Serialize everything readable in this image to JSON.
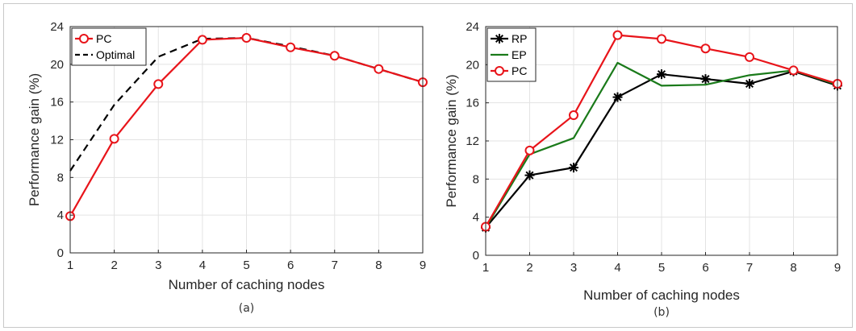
{
  "chart_data": [
    {
      "type": "line",
      "caption": "(a)",
      "xlabel": "Number of caching nodes",
      "ylabel": "Performance gain (%)",
      "xlim": [
        1,
        9
      ],
      "ylim": [
        0,
        24
      ],
      "xticks": [
        1,
        2,
        3,
        4,
        5,
        6,
        7,
        8,
        9
      ],
      "yticks": [
        0,
        4,
        8,
        12,
        16,
        20,
        24
      ],
      "grid": true,
      "legend_position": "top-left",
      "x": [
        1,
        2,
        3,
        4,
        5,
        6,
        7,
        8,
        9
      ],
      "series": [
        {
          "name": "PC",
          "values": [
            3.9,
            12.1,
            17.9,
            22.6,
            22.8,
            21.8,
            20.9,
            19.5,
            18.1
          ],
          "color": "#e8141a",
          "style": "solid",
          "marker": "circle"
        },
        {
          "name": "Optimal",
          "values": [
            8.7,
            15.7,
            20.8,
            22.7,
            22.8,
            21.9,
            20.9,
            19.5,
            18.1
          ],
          "color": "#000000",
          "style": "dashed",
          "marker": "none"
        }
      ]
    },
    {
      "type": "line",
      "caption": "(b)",
      "xlabel": "Number of caching nodes",
      "ylabel": "Performance gain (%)",
      "xlim": [
        1,
        9
      ],
      "ylim": [
        0,
        24
      ],
      "xticks": [
        1,
        2,
        3,
        4,
        5,
        6,
        7,
        8,
        9
      ],
      "yticks": [
        0,
        4,
        8,
        12,
        16,
        20,
        24
      ],
      "grid": true,
      "legend_position": "top-left",
      "x": [
        1,
        2,
        3,
        4,
        5,
        6,
        7,
        8,
        9
      ],
      "series": [
        {
          "name": "RP",
          "values": [
            2.9,
            8.4,
            9.2,
            16.6,
            19.0,
            18.5,
            18.0,
            19.3,
            17.8
          ],
          "color": "#000000",
          "style": "solid",
          "marker": "asterisk"
        },
        {
          "name": "EP",
          "values": [
            2.9,
            10.6,
            12.3,
            20.2,
            17.8,
            17.9,
            18.9,
            19.4,
            17.9
          ],
          "color": "#1a7a1a",
          "style": "solid",
          "marker": "none"
        },
        {
          "name": "PC",
          "values": [
            3.0,
            11.0,
            14.7,
            23.1,
            22.7,
            21.7,
            20.8,
            19.4,
            18.0
          ],
          "color": "#e8141a",
          "style": "solid",
          "marker": "circle"
        }
      ]
    }
  ]
}
